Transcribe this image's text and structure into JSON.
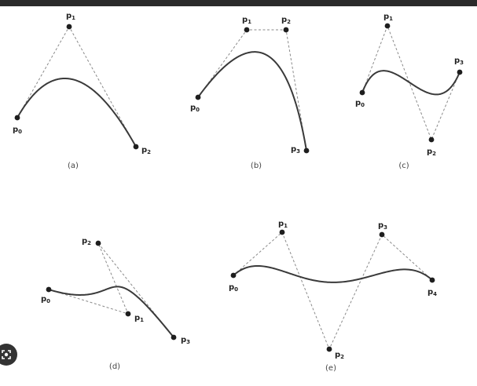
{
  "panels": [
    {
      "caption": "(a)",
      "points": [
        {
          "label": "p",
          "sub": "0"
        },
        {
          "label": "p",
          "sub": "1"
        },
        {
          "label": "p",
          "sub": "2"
        }
      ]
    },
    {
      "caption": "(b)",
      "points": [
        {
          "label": "p",
          "sub": "0"
        },
        {
          "label": "p",
          "sub": "1"
        },
        {
          "label": "p",
          "sub": "2"
        },
        {
          "label": "p",
          "sub": "3"
        }
      ]
    },
    {
      "caption": "(c)",
      "points": [
        {
          "label": "p",
          "sub": "0"
        },
        {
          "label": "p",
          "sub": "1"
        },
        {
          "label": "p",
          "sub": "2"
        },
        {
          "label": "p",
          "sub": "3"
        }
      ]
    },
    {
      "caption": "(d)",
      "points": [
        {
          "label": "p",
          "sub": "0"
        },
        {
          "label": "p",
          "sub": "1"
        },
        {
          "label": "p",
          "sub": "2"
        },
        {
          "label": "p",
          "sub": "3"
        }
      ]
    },
    {
      "caption": "(e)",
      "points": [
        {
          "label": "p",
          "sub": "0"
        },
        {
          "label": "p",
          "sub": "1"
        },
        {
          "label": "p",
          "sub": "2"
        },
        {
          "label": "p",
          "sub": "3"
        },
        {
          "label": "p",
          "sub": "4"
        }
      ]
    }
  ],
  "overlay": {
    "lens_icon": "lens-icon"
  },
  "colors": {
    "curve": "#3a3a3a",
    "polygon": "#8a8a8a",
    "point": "#1e1e1e",
    "top_bar": "#2b2b2b"
  }
}
